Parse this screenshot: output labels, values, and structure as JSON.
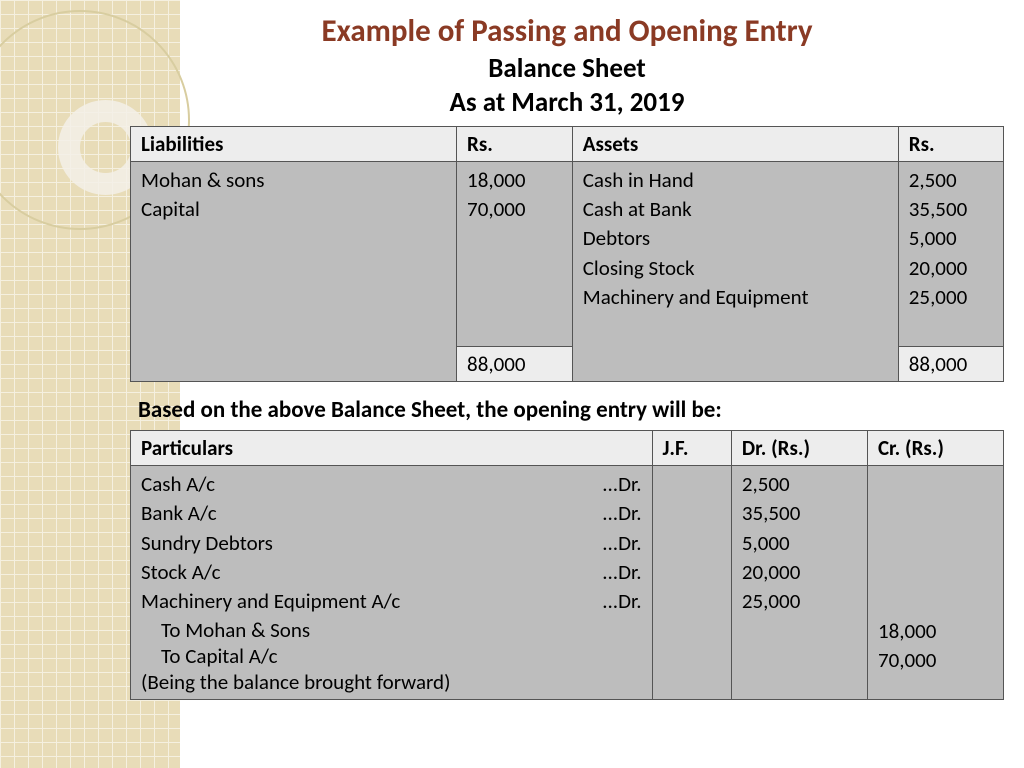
{
  "colors": {
    "title": "#8a3a24",
    "pattern_bg": "#e8dcb8",
    "pattern_line": "#f5f0e0",
    "header_bg": "#ededed",
    "body_bg": "#bdbdbd",
    "border": "#555555"
  },
  "header": {
    "title": "Example of Passing and Opening Entry",
    "subtitle1": "Balance Sheet",
    "subtitle2": "As at March 31, 2019"
  },
  "balance_sheet": {
    "columns": {
      "liabilities": "Liabilities",
      "rs1": "Rs.",
      "assets": "Assets",
      "rs2": "Rs."
    },
    "liabilities": [
      {
        "name": "Mohan & sons",
        "amount": "18,000"
      },
      {
        "name": "Capital",
        "amount": "70,000"
      }
    ],
    "assets": [
      {
        "name": "Cash in Hand",
        "amount": "2,500"
      },
      {
        "name": "Cash at Bank",
        "amount": "35,500"
      },
      {
        "name": "Debtors",
        "amount": "5,000"
      },
      {
        "name": "Closing Stock",
        "amount": "20,000"
      },
      {
        "name": "Machinery and Equipment",
        "amount": "25,000"
      }
    ],
    "totals": {
      "liabilities": "88,000",
      "assets": "88,000"
    }
  },
  "note": "Based on the above Balance Sheet, the opening entry will be:",
  "journal": {
    "columns": {
      "particulars": "Particulars",
      "jf": "J.F.",
      "dr": "Dr. (Rs.)",
      "cr": "Cr. (Rs.)"
    },
    "debit_entries": [
      {
        "name": "Cash A/c",
        "suffix": "...Dr.",
        "amount": "2,500"
      },
      {
        "name": "Bank A/c",
        "suffix": "...Dr.",
        "amount": "35,500"
      },
      {
        "name": "Sundry Debtors",
        "suffix": "...Dr.",
        "amount": "5,000"
      },
      {
        "name": "Stock A/c",
        "suffix": "...Dr.",
        "amount": "20,000"
      },
      {
        "name": "Machinery and Equipment A/c",
        "suffix": "...Dr.",
        "amount": "25,000"
      }
    ],
    "credit_entries": [
      {
        "name": "To Mohan & Sons",
        "amount": "18,000"
      },
      {
        "name": "To Capital A/c",
        "amount": "70,000"
      }
    ],
    "narration": "(Being the balance brought forward)"
  }
}
